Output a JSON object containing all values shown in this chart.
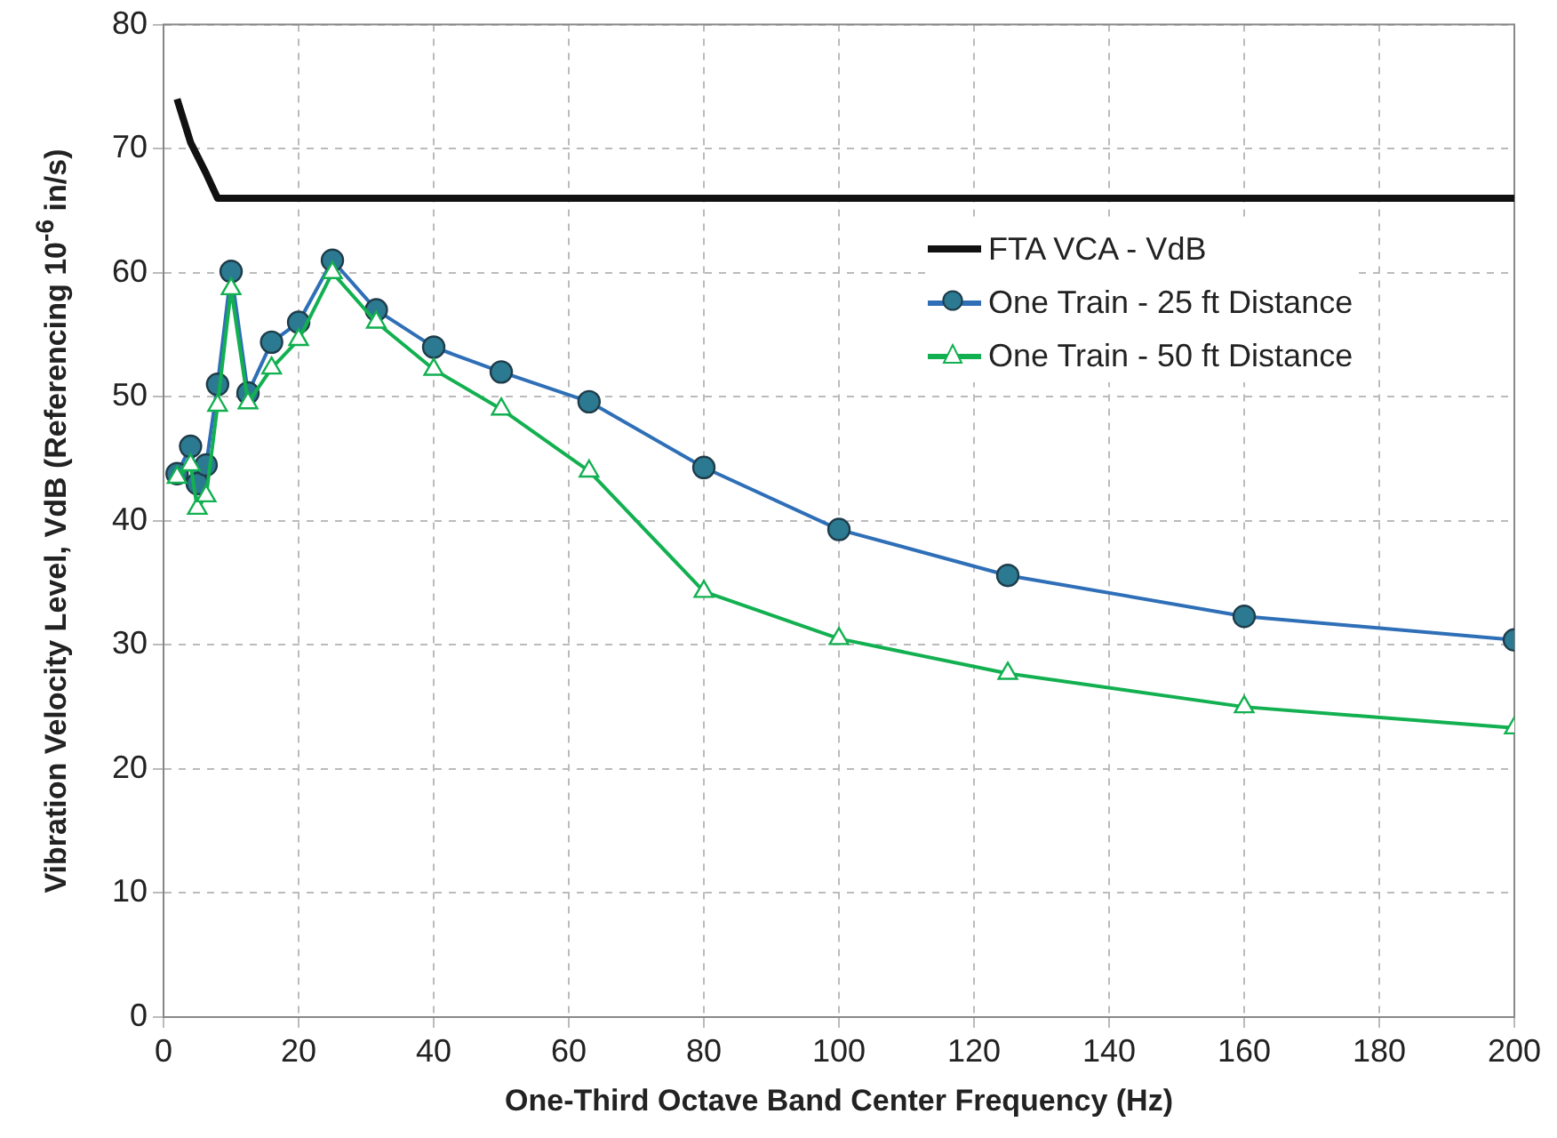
{
  "chart_data": {
    "type": "line",
    "xlabel": "One-Third Octave Band Center Frequency (Hz)",
    "ylabel": "Vibration Velocity Level, VdB (Referencing 10$^{-6}$ in/s)",
    "xlim": [
      0,
      200
    ],
    "xticks": [
      0,
      20,
      40,
      60,
      80,
      100,
      120,
      140,
      160,
      180,
      200
    ],
    "ylim": [
      0,
      80
    ],
    "yticks": [
      0,
      10,
      20,
      30,
      40,
      50,
      60,
      70,
      80
    ],
    "grid": true,
    "legend": "right",
    "series": [
      {
        "name": "FTA VCA - VdB",
        "color": "#111111",
        "marker": "none",
        "x": [
          2,
          4,
          6.3,
          8,
          200
        ],
        "values": [
          74,
          70.5,
          68,
          66,
          66
        ]
      },
      {
        "name": "One Train - 25 ft Distance",
        "color": "#2e6fb7",
        "marker": "circle",
        "x": [
          2,
          4,
          5,
          6.3,
          8,
          10,
          12.5,
          16,
          20,
          25,
          31.5,
          40,
          50,
          63,
          80,
          100,
          125,
          160,
          200
        ],
        "values": [
          43.8,
          46,
          43,
          44.5,
          51,
          60.1,
          50.3,
          54.4,
          56,
          61,
          57,
          54,
          52,
          49.6,
          44.3,
          39.3,
          35.6,
          32.3,
          30.4
        ]
      },
      {
        "name": "One Train - 50 ft Distance",
        "color": "#12b050",
        "marker": "triangle",
        "x": [
          2,
          4,
          5,
          6.3,
          8,
          10,
          12.5,
          16,
          20,
          25,
          31.5,
          40,
          50,
          63,
          80,
          100,
          125,
          160,
          200
        ],
        "values": [
          43.5,
          44.5,
          41,
          42,
          49.3,
          58.7,
          49.5,
          52.3,
          54.6,
          60,
          56,
          52.2,
          49,
          44,
          34.3,
          30.5,
          27.7,
          25,
          23.3
        ]
      }
    ]
  }
}
